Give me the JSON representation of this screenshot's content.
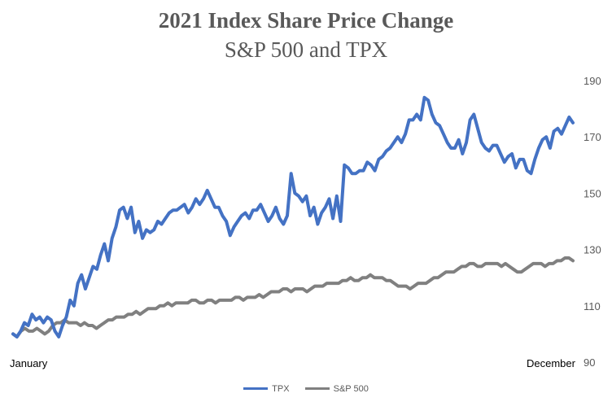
{
  "chart_data": {
    "type": "line",
    "title": "2021 Index Share Price Change",
    "subtitle": "S&P 500 and TPX",
    "x_start_label": "January",
    "x_end_label": "December",
    "ylim": [
      90,
      190
    ],
    "y_ticks": [
      90,
      110,
      130,
      150,
      170,
      190
    ],
    "grid": false,
    "legend_position": "bottom",
    "series": [
      {
        "name": "TPX",
        "color": "#4472C4",
        "values": [
          100,
          99,
          101,
          104,
          103,
          107,
          105,
          106,
          104,
          106,
          105,
          101,
          99,
          103,
          106,
          112,
          110,
          118,
          121,
          116,
          120,
          124,
          123,
          128,
          132,
          126,
          134,
          138,
          144,
          145,
          141,
          145,
          136,
          140,
          134,
          137,
          136,
          137,
          140,
          139,
          141,
          143,
          144,
          144,
          145,
          146,
          143,
          145,
          148,
          146,
          148,
          151,
          148,
          145,
          145,
          142,
          140,
          135,
          138,
          140,
          142,
          143,
          141,
          144,
          144,
          146,
          143,
          140,
          142,
          145,
          141,
          139,
          142,
          157,
          150,
          149,
          147,
          149,
          142,
          145,
          139,
          143,
          145,
          148,
          141,
          149,
          140,
          160,
          159,
          157,
          157,
          158,
          158,
          161,
          160,
          158,
          162,
          163,
          165,
          166,
          168,
          170,
          168,
          171,
          176,
          176,
          178,
          176,
          184,
          183,
          178,
          175,
          174,
          171,
          168,
          166,
          166,
          169,
          164,
          168,
          176,
          178,
          173,
          168,
          166,
          165,
          167,
          167,
          164,
          161,
          163,
          164,
          159,
          162,
          162,
          158,
          157,
          162,
          166,
          169,
          170,
          166,
          172,
          173,
          171,
          174,
          177,
          175
        ]
      },
      {
        "name": "S&P 500",
        "color": "#808080",
        "values": [
          100,
          99,
          101,
          102,
          101,
          101,
          102,
          101,
          100,
          101,
          103,
          104,
          104,
          105,
          104,
          104,
          104,
          103,
          104,
          103,
          103,
          102,
          103,
          104,
          105,
          105,
          106,
          106,
          106,
          107,
          107,
          108,
          107,
          108,
          109,
          109,
          109,
          110,
          110,
          111,
          110,
          111,
          111,
          111,
          111,
          112,
          112,
          111,
          111,
          112,
          112,
          111,
          112,
          112,
          112,
          112,
          113,
          113,
          112,
          113,
          113,
          113,
          114,
          113,
          114,
          115,
          115,
          115,
          116,
          116,
          115,
          116,
          116,
          116,
          115,
          116,
          117,
          117,
          117,
          118,
          118,
          118,
          118,
          119,
          119,
          120,
          119,
          119,
          120,
          120,
          121,
          120,
          120,
          120,
          119,
          119,
          118,
          117,
          117,
          117,
          116,
          117,
          118,
          118,
          118,
          119,
          120,
          120,
          121,
          122,
          122,
          122,
          123,
          124,
          124,
          125,
          125,
          124,
          124,
          125,
          125,
          125,
          125,
          124,
          125,
          124,
          123,
          122,
          122,
          123,
          124,
          125,
          125,
          125,
          124,
          125,
          125,
          126,
          126,
          127,
          127,
          126
        ]
      }
    ]
  }
}
